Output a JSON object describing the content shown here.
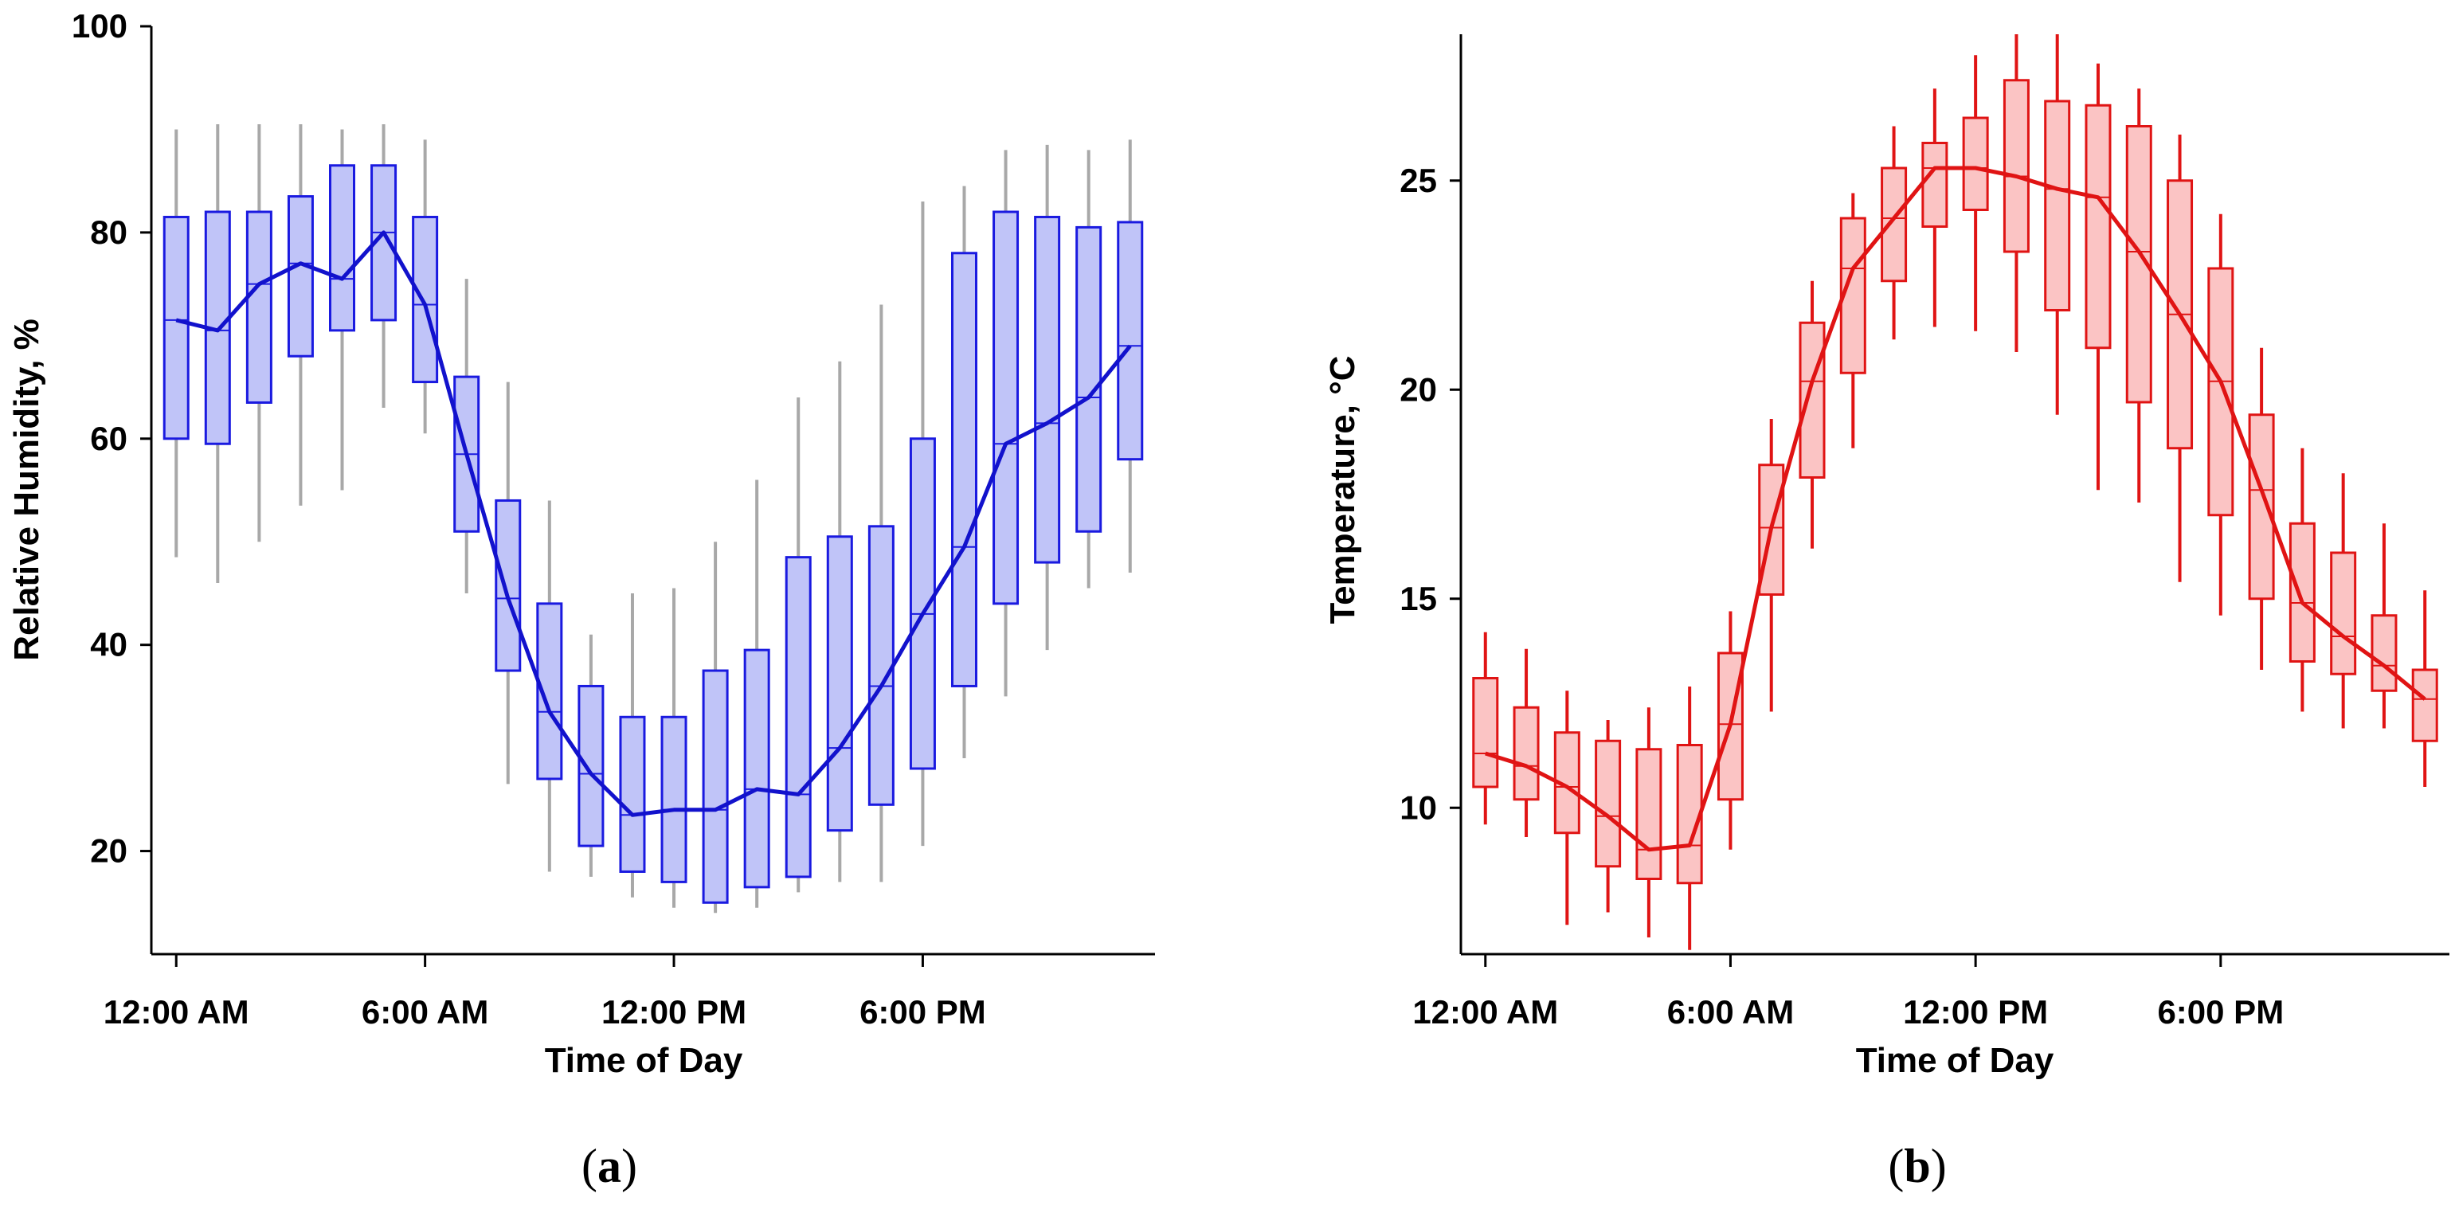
{
  "chart_data": [
    {
      "type": "box",
      "panel_label": "a",
      "xlabel": "Time of Day",
      "ylabel": "Relative Humidity, %",
      "x_tick_labels": [
        "12:00 AM",
        "6:00 AM",
        "12:00 PM",
        "6:00 PM"
      ],
      "x_tick_hours": [
        0,
        6,
        12,
        18
      ],
      "xlim": [
        -0.6,
        23.6
      ],
      "ylim": [
        10,
        100
      ],
      "y_ticks": [
        20,
        40,
        60,
        80,
        100
      ],
      "box_fill": "#c0c4f8",
      "box_stroke": "#1a1ae0",
      "whisker_color": "#a8a8a8",
      "median_line_color": "#1212cc",
      "hours": [
        0,
        1,
        2,
        3,
        4,
        5,
        6,
        7,
        8,
        9,
        10,
        11,
        12,
        13,
        14,
        15,
        16,
        17,
        18,
        19,
        20,
        21,
        22,
        23
      ],
      "whisker_low": [
        48.5,
        46,
        50,
        53.5,
        55,
        63,
        60.5,
        45,
        26.5,
        18,
        17.5,
        15.5,
        14.5,
        14,
        14.5,
        16,
        17,
        17,
        20.5,
        29,
        35,
        39.5,
        45.5,
        47
      ],
      "q1": [
        60,
        59.5,
        63.5,
        68,
        70.5,
        71.5,
        65.5,
        51,
        37.5,
        27,
        20.5,
        18,
        17,
        15,
        16.5,
        17.5,
        22,
        24.5,
        28,
        36,
        44,
        48,
        51,
        58
      ],
      "median": [
        71.5,
        70.5,
        75,
        77,
        75.5,
        80,
        73,
        58.5,
        44.5,
        33.5,
        27.5,
        23.5,
        24,
        24,
        26,
        25.5,
        30,
        36,
        43,
        49.5,
        59.5,
        61.5,
        64,
        69
      ],
      "q3": [
        81.5,
        82,
        82,
        83.5,
        86.5,
        86.5,
        81.5,
        66,
        54,
        44,
        36,
        33,
        33,
        37.5,
        39.5,
        48.5,
        50.5,
        51.5,
        60,
        78,
        82,
        81.5,
        80.5,
        81
      ],
      "whisker_high": [
        90,
        90.5,
        90.5,
        90.5,
        90,
        90.5,
        89,
        75.5,
        65.5,
        54,
        41,
        45,
        45.5,
        50,
        56,
        64,
        67.5,
        73,
        83,
        84.5,
        88,
        88.5,
        88,
        89
      ]
    },
    {
      "type": "box",
      "panel_label": "b",
      "xlabel": "Time of Day",
      "ylabel": "Temperature, °C",
      "x_tick_labels": [
        "12:00 AM",
        "6:00 AM",
        "12:00 PM",
        "6:00 PM"
      ],
      "x_tick_hours": [
        0,
        6,
        12,
        18
      ],
      "xlim": [
        -0.6,
        23.6
      ],
      "ylim": [
        6.5,
        28.5
      ],
      "y_ticks": [
        10,
        15,
        20,
        25
      ],
      "box_fill": "#fbc4c4",
      "box_stroke": "#e01414",
      "whisker_color": "#e01414",
      "median_line_color": "#e01414",
      "hours": [
        0,
        1,
        2,
        3,
        4,
        5,
        6,
        7,
        8,
        9,
        10,
        11,
        12,
        13,
        14,
        15,
        16,
        17,
        18,
        19,
        20,
        21,
        22,
        23
      ],
      "whisker_low": [
        9.6,
        9.3,
        7.2,
        7.5,
        6.9,
        6.6,
        9,
        12.3,
        16.2,
        18.6,
        21.2,
        21.5,
        21.4,
        20.9,
        19.4,
        17.6,
        17.3,
        15.4,
        14.6,
        13.3,
        12.3,
        11.9,
        11.9,
        10.5
      ],
      "q1": [
        10.5,
        10.2,
        9.4,
        8.6,
        8.3,
        8.2,
        10.2,
        15.1,
        17.9,
        20.4,
        22.6,
        23.9,
        24.3,
        23.3,
        21.9,
        21,
        19.7,
        18.6,
        17,
        15,
        13.5,
        13.2,
        12.8,
        11.6
      ],
      "median": [
        11.3,
        11,
        10.5,
        9.8,
        9,
        9.1,
        12,
        16.7,
        20.2,
        22.9,
        24.1,
        25.3,
        25.3,
        25.1,
        24.8,
        24.6,
        23.3,
        21.8,
        20.2,
        17.6,
        14.9,
        14.1,
        13.4,
        12.6
      ],
      "q3": [
        13.1,
        12.4,
        11.8,
        11.6,
        11.4,
        11.5,
        13.7,
        18.2,
        21.6,
        24.1,
        25.3,
        25.9,
        26.5,
        27.4,
        26.9,
        26.8,
        26.3,
        25,
        22.9,
        19.4,
        16.8,
        16.1,
        14.6,
        13.3
      ],
      "whisker_high": [
        14.2,
        13.8,
        12.8,
        12.1,
        12.4,
        12.9,
        14.7,
        19.3,
        22.6,
        24.7,
        26.3,
        27.2,
        28,
        28.5,
        28.5,
        27.8,
        27.2,
        26.1,
        24.2,
        21,
        18.6,
        18,
        16.8,
        15.2
      ]
    }
  ]
}
